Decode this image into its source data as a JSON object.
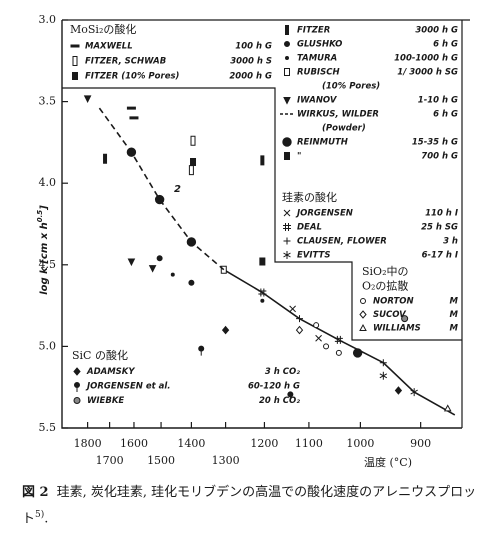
{
  "chart_data": {
    "type": "scatter",
    "x_scale": "reciprocal-kelvin",
    "y_reversed": true,
    "color": "#1a1a1a",
    "xlim": [
      1930,
      840
    ],
    "ylim": [
      3.0,
      5.5
    ],
    "xticks": [
      1800,
      1700,
      1600,
      1500,
      1400,
      1300,
      1200,
      1100,
      1000,
      900
    ],
    "yticks": [
      {
        "value": 3.0,
        "label": "3.0"
      },
      3.5,
      {
        "value": 4.0,
        "label": "4.0"
      },
      4.5,
      {
        "value": 5.0,
        "label": "5.0"
      },
      5.5
    ],
    "x_label": "温度 (°C)",
    "y_label": {
      "main": "log k  [cm x h",
      "sup": "0.5",
      "end": "]"
    },
    "annotation": "2",
    "trend_lines": [
      {
        "style": "solid",
        "x": [
          1305,
          1205,
          1120,
          1040,
          960,
          910,
          850
        ],
        "y": [
          4.53,
          4.67,
          4.83,
          4.96,
          5.1,
          5.28,
          5.42
        ]
      }
    ],
    "groups": [
      {
        "title": [
          "MoSi₂の酸化"
        ],
        "series": [
          {
            "name": "MAXWELL",
            "conditions": "100 h G",
            "marker": "dash",
            "x": [
              1610,
              1600
            ],
            "values": [
              3.54,
              3.6
            ]
          },
          {
            "name": "FITZER, SCHWAB",
            "conditions": "3000 h S",
            "marker": "tall-rect-hollow",
            "x": [
              1395,
              1400
            ],
            "values": [
              3.74,
              3.92
            ]
          },
          {
            "name": "FITZER (10% Pores)",
            "conditions": "2000 h G",
            "marker": "rect-half",
            "x": [
              1395
            ],
            "values": [
              3.87
            ]
          }
        ]
      },
      {
        "series": [
          {
            "name": "FITZER",
            "conditions": "3000 h G",
            "marker": "bar",
            "x": [
              1205,
              1720
            ],
            "values": [
              3.86,
              3.85
            ]
          },
          {
            "name": "GLUSHKO",
            "conditions": "6 h G",
            "marker": "dot",
            "x": [
              1505,
              1400
            ],
            "values": [
              4.46,
              4.61
            ]
          },
          {
            "name": "TAMURA",
            "conditions": "100-1000 h G",
            "marker": "small-dot",
            "x": [
              1460,
              1205
            ],
            "values": [
              4.56,
              4.72
            ]
          },
          {
            "name": "RUBISCH",
            "conditions": "1/ 3000 h SG",
            "note": "(10% Pores)",
            "marker": "rect-hollow",
            "x": [
              1305
            ],
            "values": [
              4.53
            ]
          },
          {
            "name": "IWANOV",
            "conditions": "1-10 h G",
            "marker": "triangle-down",
            "x": [
              1800,
              1610,
              1530
            ],
            "values": [
              3.48,
              4.48,
              4.52
            ]
          },
          {
            "name": "WIRKUS, WILDER",
            "conditions": "6 h G",
            "note": "(Powder)",
            "marker": "dashed-line",
            "x": [
              1745,
              1610,
              1505,
              1400,
              1305
            ],
            "values": [
              3.54,
              3.81,
              4.1,
              4.36,
              4.53
            ]
          },
          {
            "name": "REINMUTH",
            "conditions": "15-35 h G",
            "marker": "circle-big",
            "x": [
              1610,
              1505,
              1400,
              1005
            ],
            "values": [
              3.81,
              4.1,
              4.36,
              5.04
            ]
          },
          {
            "name": "\"",
            "conditions": "700 h G",
            "marker": "rect-half",
            "x": [
              1205
            ],
            "values": [
              4.48
            ]
          }
        ]
      },
      {
        "title": [
          "珪素の酸化"
        ],
        "series": [
          {
            "name": "JORGENSEN",
            "conditions": "110 h I",
            "marker": "cross",
            "x": [
              1135,
              1080
            ],
            "values": [
              4.77,
              4.95
            ]
          },
          {
            "name": "DEAL",
            "conditions": "25 h SG",
            "marker": "double-cross",
            "x": [
              1205,
              1040
            ],
            "values": [
              4.67,
              4.96
            ]
          },
          {
            "name": "CLAUSEN, FLOWER",
            "conditions": "3 h",
            "marker": "plus",
            "x": [
              1120,
              960
            ],
            "values": [
              4.83,
              5.1
            ]
          },
          {
            "name": "EVITTS",
            "conditions": "6-17 h I",
            "marker": "star",
            "x": [
              910,
              960
            ],
            "values": [
              5.28,
              5.18
            ]
          }
        ]
      },
      {
        "title": [
          "SiO₂中の",
          "O₂の拡散"
        ],
        "series": [
          {
            "name": "NORTON",
            "conditions": "M",
            "marker": "circle-open",
            "x": [
              1065,
              1085,
              1040
            ],
            "values": [
              5.0,
              4.87,
              5.04
            ]
          },
          {
            "name": "SUCOV",
            "conditions": "M",
            "marker": "diamond-open",
            "x": [
              1120
            ],
            "values": [
              4.9
            ]
          },
          {
            "name": "WILLIAMS",
            "conditions": "M",
            "marker": "triangle-open",
            "x": [
              860
            ],
            "values": [
              5.38
            ]
          }
        ]
      },
      {
        "title": [
          "SiC の酸化"
        ],
        "series": [
          {
            "name": "ADAMSKY",
            "conditions": "3 h CO₂",
            "marker": "diamond",
            "x": [
              1300,
              935
            ],
            "values": [
              4.9,
              5.27
            ]
          },
          {
            "name": "JORGENSEN et al.",
            "conditions": "60-120 h G",
            "marker": "pin",
            "x": [
              1370,
              1140
            ],
            "values": [
              5.02,
              5.3
            ]
          },
          {
            "name": "WIEBKE",
            "conditions": "20 h CO₂",
            "marker": "circle-half",
            "x": [
              925
            ],
            "values": [
              4.83
            ]
          }
        ]
      }
    ]
  },
  "caption": {
    "label": "図 2",
    "text": "珪素, 炭化珪素, 珪化モリブデンの高温での酸化速度のアレニウスプロット",
    "ref": "5)",
    "end": "."
  }
}
